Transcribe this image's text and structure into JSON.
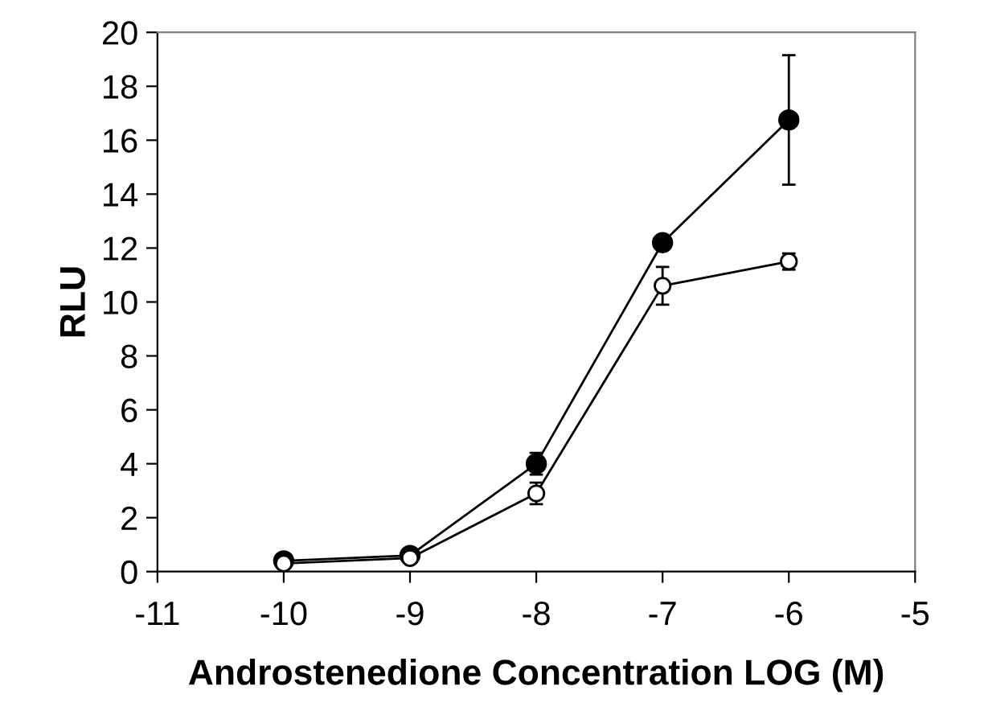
{
  "chart_data": {
    "type": "line",
    "xlabel": "Androstenedione Concentration LOG (M)",
    "ylabel": "RLU",
    "x": [
      -10,
      -9,
      -8,
      -7,
      -6
    ],
    "series": [
      {
        "color": "#000000",
        "marker": "circle",
        "values": [
          0.4,
          0.6,
          4.0,
          12.2,
          16.75
        ],
        "errors": [
          0.1,
          0.1,
          0.4,
          0.2,
          2.4
        ]
      },
      {
        "color": "#ffffff",
        "marker": "circle",
        "values": [
          0.3,
          0.5,
          2.9,
          10.6,
          11.5
        ],
        "errors": [
          0.1,
          0.1,
          0.4,
          0.7,
          0.3
        ]
      }
    ],
    "xlim": [
      -11,
      -5
    ],
    "xticks": [
      -11,
      -10,
      -9,
      -8,
      -7,
      -6,
      -5
    ],
    "ylim": [
      0,
      20
    ],
    "yticks": [
      0,
      2,
      4,
      6,
      8,
      10,
      12,
      14,
      16,
      18,
      20
    ],
    "grid": false,
    "legend": false,
    "line_style": "solid"
  }
}
